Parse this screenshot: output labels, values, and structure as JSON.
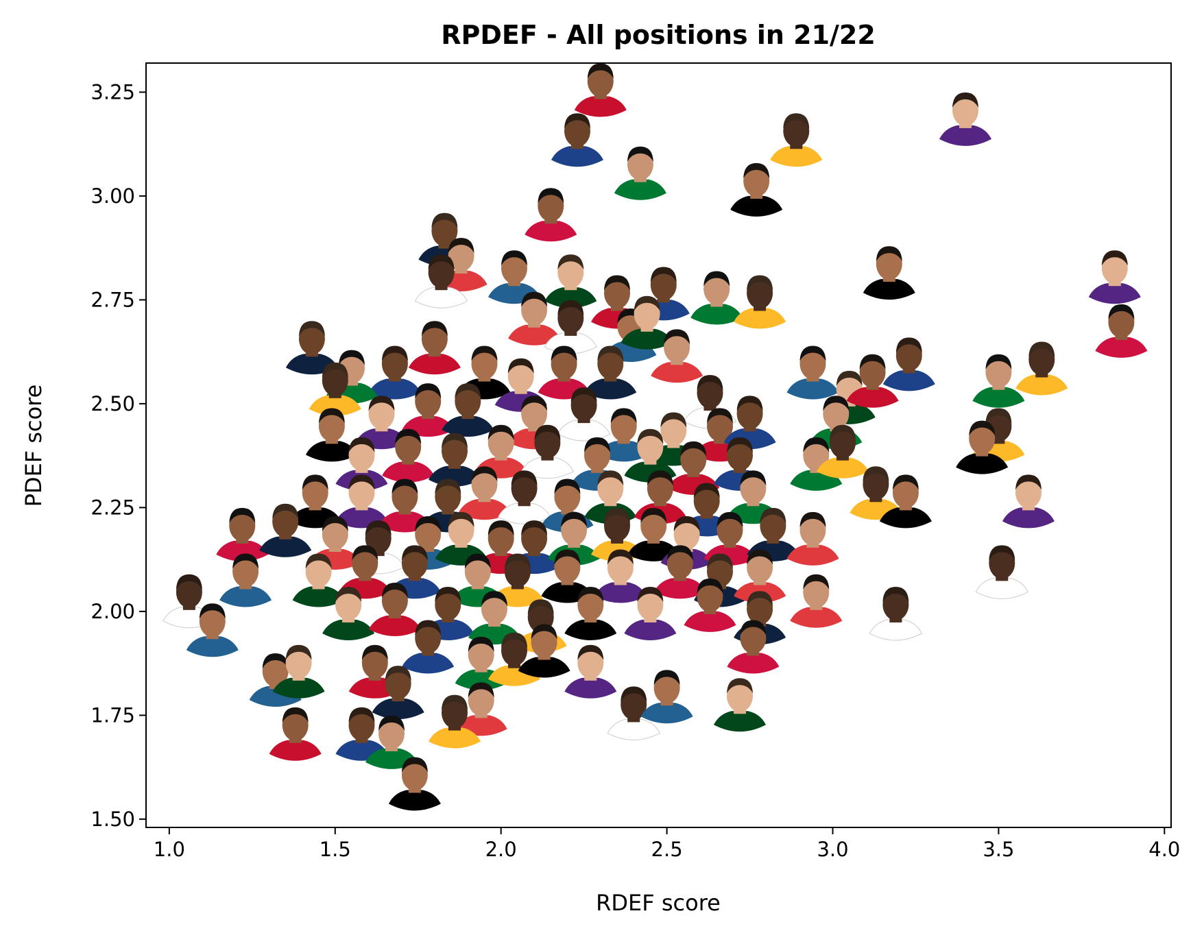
{
  "chart_data": {
    "type": "scatter",
    "title": "RPDEF - All positions in 21/22",
    "xlabel": "RDEF score",
    "ylabel": "PDEF score",
    "xlim": [
      0.93,
      4.02
    ],
    "ylim": [
      1.48,
      3.32
    ],
    "xticks": [
      {
        "value": 1.0,
        "label": "1.0"
      },
      {
        "value": 1.5,
        "label": "1.5"
      },
      {
        "value": 2.0,
        "label": "2.0"
      },
      {
        "value": 2.5,
        "label": "2.5"
      },
      {
        "value": 3.0,
        "label": "3.0"
      },
      {
        "value": 3.5,
        "label": "3.5"
      },
      {
        "value": 4.0,
        "label": "4.0"
      }
    ],
    "yticks": [
      {
        "value": 1.5,
        "label": "1.50"
      },
      {
        "value": 1.75,
        "label": "1.75"
      },
      {
        "value": 2.0,
        "label": "2.00"
      },
      {
        "value": 2.25,
        "label": "2.25"
      },
      {
        "value": 2.5,
        "label": "2.50"
      },
      {
        "value": 2.75,
        "label": "2.75"
      },
      {
        "value": 3.0,
        "label": "3.00"
      },
      {
        "value": 3.25,
        "label": "3.25"
      }
    ],
    "grid": false,
    "marker": "player headshot",
    "points": [
      {
        "x": 2.3,
        "y": 3.24
      },
      {
        "x": 2.23,
        "y": 3.12
      },
      {
        "x": 2.42,
        "y": 3.04
      },
      {
        "x": 2.89,
        "y": 3.12
      },
      {
        "x": 2.77,
        "y": 3.0
      },
      {
        "x": 3.4,
        "y": 3.17
      },
      {
        "x": 2.15,
        "y": 2.94
      },
      {
        "x": 1.83,
        "y": 2.88
      },
      {
        "x": 1.88,
        "y": 2.82
      },
      {
        "x": 1.82,
        "y": 2.78
      },
      {
        "x": 2.04,
        "y": 2.79
      },
      {
        "x": 2.21,
        "y": 2.78
      },
      {
        "x": 2.35,
        "y": 2.73
      },
      {
        "x": 2.49,
        "y": 2.75
      },
      {
        "x": 2.65,
        "y": 2.74
      },
      {
        "x": 2.78,
        "y": 2.73
      },
      {
        "x": 3.17,
        "y": 2.8
      },
      {
        "x": 3.85,
        "y": 2.79
      },
      {
        "x": 3.87,
        "y": 2.66
      },
      {
        "x": 1.43,
        "y": 2.62
      },
      {
        "x": 2.1,
        "y": 2.69
      },
      {
        "x": 2.21,
        "y": 2.67
      },
      {
        "x": 2.39,
        "y": 2.65
      },
      {
        "x": 2.44,
        "y": 2.68
      },
      {
        "x": 1.8,
        "y": 2.62
      },
      {
        "x": 1.68,
        "y": 2.56
      },
      {
        "x": 1.55,
        "y": 2.55
      },
      {
        "x": 1.5,
        "y": 2.52
      },
      {
        "x": 1.95,
        "y": 2.56
      },
      {
        "x": 2.06,
        "y": 2.53
      },
      {
        "x": 2.19,
        "y": 2.56
      },
      {
        "x": 2.33,
        "y": 2.56
      },
      {
        "x": 2.53,
        "y": 2.6
      },
      {
        "x": 2.63,
        "y": 2.49
      },
      {
        "x": 2.94,
        "y": 2.56
      },
      {
        "x": 3.05,
        "y": 2.5
      },
      {
        "x": 3.12,
        "y": 2.54
      },
      {
        "x": 3.23,
        "y": 2.58
      },
      {
        "x": 3.5,
        "y": 2.54
      },
      {
        "x": 3.63,
        "y": 2.57
      },
      {
        "x": 1.49,
        "y": 2.41
      },
      {
        "x": 1.64,
        "y": 2.44
      },
      {
        "x": 1.78,
        "y": 2.47
      },
      {
        "x": 1.9,
        "y": 2.47
      },
      {
        "x": 2.1,
        "y": 2.44
      },
      {
        "x": 2.25,
        "y": 2.46
      },
      {
        "x": 2.37,
        "y": 2.41
      },
      {
        "x": 2.52,
        "y": 2.4
      },
      {
        "x": 2.66,
        "y": 2.41
      },
      {
        "x": 2.75,
        "y": 2.44
      },
      {
        "x": 3.01,
        "y": 2.44
      },
      {
        "x": 3.5,
        "y": 2.41
      },
      {
        "x": 3.45,
        "y": 2.38
      },
      {
        "x": 1.58,
        "y": 2.34
      },
      {
        "x": 1.72,
        "y": 2.36
      },
      {
        "x": 1.86,
        "y": 2.35
      },
      {
        "x": 2.0,
        "y": 2.37
      },
      {
        "x": 2.14,
        "y": 2.37
      },
      {
        "x": 2.29,
        "y": 2.34
      },
      {
        "x": 2.45,
        "y": 2.36
      },
      {
        "x": 2.58,
        "y": 2.33
      },
      {
        "x": 2.72,
        "y": 2.34
      },
      {
        "x": 2.95,
        "y": 2.34
      },
      {
        "x": 3.03,
        "y": 2.37
      },
      {
        "x": 1.44,
        "y": 2.25
      },
      {
        "x": 1.58,
        "y": 2.25
      },
      {
        "x": 1.71,
        "y": 2.24
      },
      {
        "x": 1.84,
        "y": 2.24
      },
      {
        "x": 1.95,
        "y": 2.27
      },
      {
        "x": 2.07,
        "y": 2.26
      },
      {
        "x": 2.2,
        "y": 2.24
      },
      {
        "x": 2.33,
        "y": 2.26
      },
      {
        "x": 2.48,
        "y": 2.26
      },
      {
        "x": 2.62,
        "y": 2.23
      },
      {
        "x": 2.76,
        "y": 2.26
      },
      {
        "x": 3.13,
        "y": 2.27
      },
      {
        "x": 3.22,
        "y": 2.25
      },
      {
        "x": 3.59,
        "y": 2.25
      },
      {
        "x": 1.22,
        "y": 2.17
      },
      {
        "x": 1.35,
        "y": 2.18
      },
      {
        "x": 1.5,
        "y": 2.15
      },
      {
        "x": 1.63,
        "y": 2.14
      },
      {
        "x": 1.78,
        "y": 2.15
      },
      {
        "x": 1.88,
        "y": 2.16
      },
      {
        "x": 2.0,
        "y": 2.14
      },
      {
        "x": 2.1,
        "y": 2.14
      },
      {
        "x": 2.22,
        "y": 2.16
      },
      {
        "x": 2.35,
        "y": 2.17
      },
      {
        "x": 2.46,
        "y": 2.17
      },
      {
        "x": 2.56,
        "y": 2.15
      },
      {
        "x": 2.69,
        "y": 2.16
      },
      {
        "x": 2.82,
        "y": 2.17
      },
      {
        "x": 2.94,
        "y": 2.16
      },
      {
        "x": 1.06,
        "y": 2.01
      },
      {
        "x": 1.23,
        "y": 2.06
      },
      {
        "x": 1.45,
        "y": 2.06
      },
      {
        "x": 1.59,
        "y": 2.08
      },
      {
        "x": 1.74,
        "y": 2.08
      },
      {
        "x": 1.93,
        "y": 2.06
      },
      {
        "x": 2.05,
        "y": 2.06
      },
      {
        "x": 2.2,
        "y": 2.07
      },
      {
        "x": 2.36,
        "y": 2.07
      },
      {
        "x": 2.54,
        "y": 2.08
      },
      {
        "x": 2.66,
        "y": 2.06
      },
      {
        "x": 2.78,
        "y": 2.07
      },
      {
        "x": 3.51,
        "y": 2.08
      },
      {
        "x": 1.13,
        "y": 1.94
      },
      {
        "x": 1.54,
        "y": 1.98
      },
      {
        "x": 1.68,
        "y": 1.99
      },
      {
        "x": 1.84,
        "y": 1.98
      },
      {
        "x": 1.98,
        "y": 1.97
      },
      {
        "x": 2.12,
        "y": 1.95
      },
      {
        "x": 2.27,
        "y": 1.98
      },
      {
        "x": 2.45,
        "y": 1.98
      },
      {
        "x": 2.63,
        "y": 2.0
      },
      {
        "x": 2.78,
        "y": 1.97
      },
      {
        "x": 2.95,
        "y": 2.01
      },
      {
        "x": 3.19,
        "y": 1.98
      },
      {
        "x": 1.32,
        "y": 1.82
      },
      {
        "x": 1.39,
        "y": 1.84
      },
      {
        "x": 1.62,
        "y": 1.84
      },
      {
        "x": 1.78,
        "y": 1.9
      },
      {
        "x": 1.94,
        "y": 1.86
      },
      {
        "x": 2.04,
        "y": 1.87
      },
      {
        "x": 2.13,
        "y": 1.89
      },
      {
        "x": 2.27,
        "y": 1.84
      },
      {
        "x": 2.76,
        "y": 1.9
      },
      {
        "x": 1.69,
        "y": 1.79
      },
      {
        "x": 1.94,
        "y": 1.75
      },
      {
        "x": 2.4,
        "y": 1.74
      },
      {
        "x": 2.5,
        "y": 1.78
      },
      {
        "x": 2.72,
        "y": 1.76
      },
      {
        "x": 1.38,
        "y": 1.69
      },
      {
        "x": 1.58,
        "y": 1.69
      },
      {
        "x": 1.67,
        "y": 1.67
      },
      {
        "x": 1.86,
        "y": 1.72
      },
      {
        "x": 1.74,
        "y": 1.57
      }
    ]
  }
}
